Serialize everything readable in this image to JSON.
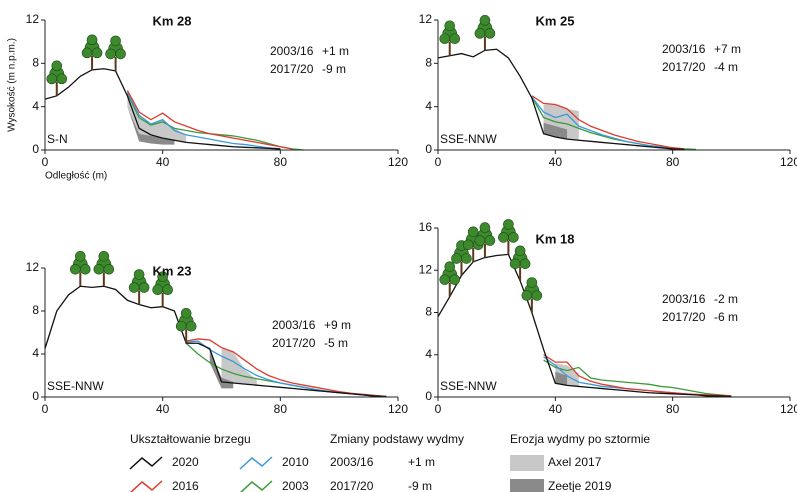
{
  "chart_data": [
    {
      "type": "line",
      "title": "Km 28",
      "y_label": "Wysokość (m n.p.m.)",
      "x_label": "Odległość (m)",
      "direction": "S-N",
      "annotations": [
        {
          "period": "2003/16",
          "change": "+1 m"
        },
        {
          "period": "2017/20",
          "change": "-9 m"
        }
      ],
      "xlim": [
        0,
        120
      ],
      "ylim": [
        0,
        12
      ],
      "xticks": [
        0,
        40,
        80,
        120
      ],
      "yticks": [
        0,
        4,
        8,
        12
      ],
      "x": [
        0,
        4,
        8,
        12,
        16,
        20,
        24,
        28,
        32,
        36,
        40,
        44,
        48,
        52,
        56,
        60,
        64,
        68,
        72,
        76,
        80,
        84,
        88,
        92,
        96,
        100,
        104,
        108,
        112,
        116
      ],
      "series": [
        {
          "name": "2020",
          "color": "#111111",
          "values": [
            4.7,
            5,
            5.8,
            6.8,
            7.4,
            7.5,
            7.3,
            5,
            2,
            1.4,
            1.1,
            0.9,
            0.7,
            0.6,
            0.5,
            0.4,
            0.3,
            0.25,
            0.2,
            0.15,
            0.1,
            null,
            null,
            null,
            null,
            null,
            null,
            null,
            null,
            null
          ]
        },
        {
          "name": "2016",
          "color": "#e03a2f",
          "values": [
            null,
            null,
            null,
            null,
            null,
            null,
            null,
            5.5,
            3.5,
            2.8,
            3.4,
            2.6,
            2.2,
            1.8,
            1.5,
            1.3,
            1.1,
            0.9,
            0.7,
            0.5,
            0.3,
            0.1,
            null,
            null,
            null,
            null,
            null,
            null,
            null,
            null
          ]
        },
        {
          "name": "2010",
          "color": "#3a9ad9",
          "values": [
            null,
            null,
            null,
            null,
            null,
            null,
            null,
            5.3,
            3.2,
            2.4,
            2.8,
            1.8,
            1.4,
            1.2,
            1.0,
            0.8,
            0.6,
            0.5,
            0.35,
            0.2,
            0.1,
            null,
            null,
            null,
            null,
            null,
            null,
            null,
            null,
            null
          ]
        },
        {
          "name": "2003",
          "color": "#3a9a3a",
          "values": [
            null,
            null,
            null,
            null,
            null,
            null,
            null,
            5.2,
            3.0,
            2.3,
            2.6,
            2.0,
            1.8,
            1.6,
            1.5,
            1.4,
            1.3,
            1.1,
            0.9,
            0.6,
            0.3,
            0.1,
            0,
            null,
            null,
            null,
            null,
            null,
            null,
            null
          ]
        }
      ],
      "areas": [
        {
          "name": "Axel 2017",
          "color": "#c8c8c8",
          "x": [
            28,
            32,
            36,
            40,
            44,
            48
          ],
          "upper": [
            5,
            3,
            2.4,
            2.8,
            2,
            1.4
          ],
          "lower": [
            4,
            1.5,
            1.3,
            1.1,
            0.9,
            0.7
          ]
        },
        {
          "name": "Zeetje 2019",
          "color": "#8a8a8a",
          "x": [
            28,
            32,
            36,
            40,
            44
          ],
          "upper": [
            4,
            1.5,
            1.3,
            1.1,
            0.9
          ],
          "lower": [
            4,
            0.8,
            0.6,
            0.5,
            0.5
          ]
        }
      ]
    },
    {
      "type": "line",
      "title": "Km 25",
      "direction": "SSE-NNW",
      "annotations": [
        {
          "period": "2003/16",
          "change": "+7 m"
        },
        {
          "period": "2017/20",
          "change": "-4 m"
        }
      ],
      "xlim": [
        0,
        120
      ],
      "ylim": [
        0,
        12
      ],
      "xticks": [
        0,
        40,
        80,
        120
      ],
      "yticks": [
        0,
        4,
        8,
        12
      ],
      "x": [
        0,
        4,
        8,
        12,
        16,
        20,
        24,
        28,
        32,
        36,
        40,
        44,
        48,
        52,
        56,
        60,
        64,
        68,
        72,
        76,
        80,
        84,
        88,
        92,
        96,
        100,
        104,
        108,
        112,
        116
      ],
      "series": [
        {
          "name": "2020",
          "color": "#111111",
          "values": [
            8.5,
            8.7,
            8.9,
            8.6,
            9.2,
            9.3,
            8.5,
            6.8,
            4.8,
            1.5,
            1.2,
            1.0,
            0.9,
            0.8,
            0.7,
            0.6,
            0.5,
            0.4,
            0.3,
            0.2,
            0.1,
            0.05,
            null,
            null,
            null,
            null,
            null,
            null,
            null,
            null
          ]
        },
        {
          "name": "2016",
          "color": "#e03a2f",
          "values": [
            null,
            null,
            null,
            null,
            null,
            null,
            null,
            null,
            5,
            4.3,
            4.2,
            3.8,
            2.8,
            2.2,
            1.8,
            1.4,
            1.1,
            0.8,
            0.6,
            0.4,
            0.2,
            0.1,
            null,
            null,
            null,
            null,
            null,
            null,
            null,
            null
          ]
        },
        {
          "name": "2010",
          "color": "#3a9ad9",
          "values": [
            null,
            null,
            null,
            null,
            null,
            null,
            null,
            null,
            4.9,
            3.5,
            3,
            3.3,
            2.2,
            1.8,
            1.4,
            1.1,
            0.8,
            0.6,
            0.4,
            0.3,
            0.15,
            0.05,
            null,
            null,
            null,
            null,
            null,
            null,
            null,
            null
          ]
        },
        {
          "name": "2003",
          "color": "#3a9a3a",
          "values": [
            null,
            null,
            null,
            null,
            null,
            null,
            null,
            null,
            4.9,
            3.0,
            2.6,
            2.4,
            2.0,
            1.6,
            1.3,
            1.0,
            0.8,
            0.6,
            0.4,
            0.3,
            0.2,
            0.1,
            0.05,
            null,
            null,
            null,
            null,
            null,
            null,
            null
          ]
        }
      ],
      "areas": [
        {
          "name": "Axel 2017",
          "color": "#c8c8c8",
          "x": [
            36,
            40,
            44,
            48
          ],
          "upper": [
            4.2,
            4.2,
            3.8,
            3.6
          ],
          "lower": [
            2,
            1.2,
            1.0,
            0.9
          ]
        },
        {
          "name": "Zeetje 2019",
          "color": "#8a8a8a",
          "x": [
            36,
            40,
            44
          ],
          "upper": [
            2.5,
            2.2,
            1.9
          ],
          "lower": [
            1.5,
            1.2,
            1.0
          ]
        }
      ]
    },
    {
      "type": "line",
      "title": "Km 23",
      "direction": "SSE-NNW",
      "annotations": [
        {
          "period": "2003/16",
          "change": "+9 m"
        },
        {
          "period": "2017/20",
          "change": "-5 m"
        }
      ],
      "xlim": [
        0,
        120
      ],
      "ylim": [
        0,
        12
      ],
      "xticks": [
        0,
        40,
        80,
        120
      ],
      "yticks": [
        0,
        4,
        8,
        12
      ],
      "x": [
        0,
        4,
        8,
        12,
        16,
        20,
        24,
        28,
        32,
        36,
        40,
        44,
        48,
        52,
        56,
        60,
        64,
        68,
        72,
        76,
        80,
        84,
        88,
        92,
        96,
        100,
        104,
        108,
        112,
        116
      ],
      "series": [
        {
          "name": "2020",
          "color": "#111111",
          "values": [
            4.5,
            8,
            9.5,
            10.3,
            10.2,
            10.3,
            10.0,
            9,
            8.6,
            8.3,
            8.4,
            8.0,
            5.0,
            5.0,
            4.5,
            1.4,
            1.3,
            1.2,
            1.1,
            1.0,
            0.9,
            0.8,
            0.7,
            0.6,
            0.5,
            0.4,
            0.3,
            0.2,
            0.1,
            0.05
          ]
        },
        {
          "name": "2016",
          "color": "#e03a2f",
          "values": [
            null,
            null,
            null,
            null,
            null,
            null,
            null,
            null,
            null,
            null,
            null,
            null,
            5.2,
            5.4,
            5.3,
            4.6,
            4.2,
            3.4,
            2.6,
            2.0,
            1.6,
            1.3,
            1.1,
            0.9,
            0.7,
            0.5,
            0.35,
            0.25,
            0.15,
            0.05
          ]
        },
        {
          "name": "2010",
          "color": "#3a9ad9",
          "values": [
            null,
            null,
            null,
            null,
            null,
            null,
            null,
            null,
            null,
            null,
            null,
            null,
            5.1,
            5.2,
            4.4,
            3.8,
            3.3,
            2.6,
            2.0,
            1.6,
            1.3,
            1.1,
            0.9,
            0.7,
            0.55,
            0.4,
            0.3,
            0.2,
            0.1,
            0.05
          ]
        },
        {
          "name": "2003",
          "color": "#3a9a3a",
          "values": [
            null,
            null,
            null,
            null,
            null,
            null,
            null,
            null,
            null,
            null,
            null,
            null,
            5.0,
            4.0,
            3.2,
            2.6,
            2.2,
            1.9,
            1.7,
            1.5,
            1.3,
            1.1,
            0.9,
            0.7,
            0.5,
            0.4,
            0.3,
            0.2,
            0.1,
            0.05
          ]
        }
      ],
      "areas": [
        {
          "name": "Axel 2017",
          "color": "#c8c8c8",
          "x": [
            60,
            64,
            68,
            72
          ],
          "upper": [
            4.6,
            4.2,
            2.5,
            1.6
          ],
          "lower": [
            1.4,
            1.3,
            1.2,
            1.1
          ]
        },
        {
          "name": "Zeetje 2019",
          "color": "#8a8a8a",
          "x": [
            56,
            60,
            64
          ],
          "upper": [
            4.4,
            1.8,
            1.4
          ],
          "lower": [
            3.2,
            0.8,
            0.8
          ]
        }
      ]
    },
    {
      "type": "line",
      "title": "Km 18",
      "direction": "SSE-NNW",
      "annotations": [
        {
          "period": "2003/16",
          "change": "-2 m"
        },
        {
          "period": "2017/20",
          "change": "-6 m"
        }
      ],
      "xlim": [
        0,
        120
      ],
      "ylim": [
        0,
        16
      ],
      "xticks": [
        0,
        40,
        80,
        120
      ],
      "yticks": [
        0,
        4,
        8,
        12,
        16
      ],
      "x": [
        0,
        4,
        8,
        12,
        16,
        20,
        24,
        28,
        32,
        36,
        40,
        44,
        48,
        52,
        56,
        60,
        64,
        68,
        72,
        76,
        80,
        84,
        88,
        92,
        96,
        100,
        104,
        108,
        112,
        116
      ],
      "series": [
        {
          "name": "2020",
          "color": "#111111",
          "values": [
            7.6,
            9.5,
            11.5,
            12.8,
            13.2,
            13.4,
            13.5,
            11,
            8,
            4.5,
            1.3,
            1.1,
            1.0,
            0.9,
            0.8,
            0.7,
            0.6,
            0.5,
            0.4,
            0.35,
            0.3,
            0.25,
            0.2,
            0.1,
            0.1,
            0.05,
            null,
            null,
            null,
            null
          ]
        },
        {
          "name": "2016",
          "color": "#e03a2f",
          "values": [
            null,
            null,
            null,
            null,
            null,
            null,
            null,
            null,
            null,
            4.0,
            3.3,
            3.3,
            2.0,
            1.5,
            1.2,
            1.0,
            0.8,
            0.7,
            0.6,
            0.5,
            0.4,
            0.3,
            0.25,
            0.2,
            0.15,
            0.1,
            null,
            null,
            null,
            null
          ]
        },
        {
          "name": "2010",
          "color": "#3a9ad9",
          "values": [
            null,
            null,
            null,
            null,
            null,
            null,
            null,
            null,
            null,
            3.8,
            3.0,
            2.0,
            1.4,
            1.2,
            1.0,
            0.9,
            0.8,
            0.7,
            0.6,
            0.5,
            0.4,
            0.3,
            0.2,
            0.2,
            0.1,
            0.05,
            null,
            null,
            null,
            null
          ]
        },
        {
          "name": "2003",
          "color": "#3a9a3a",
          "values": [
            null,
            null,
            null,
            null,
            null,
            null,
            null,
            null,
            null,
            3.5,
            2.8,
            2.5,
            2.8,
            1.8,
            1.6,
            1.5,
            1.4,
            1.3,
            1.2,
            1.0,
            0.9,
            0.7,
            0.5,
            0.3,
            0.2,
            0.1,
            null,
            null,
            null,
            null
          ]
        }
      ],
      "areas": [
        {
          "name": "Axel 2017",
          "color": "#c8c8c8",
          "x": [
            40,
            44,
            48
          ],
          "upper": [
            3.2,
            3.0,
            2.2
          ],
          "lower": [
            1.3,
            1.1,
            1.0
          ]
        },
        {
          "name": "Zeetje 2019",
          "color": "#8a8a8a",
          "x": [
            40,
            44
          ],
          "upper": [
            2.4,
            2.0
          ],
          "lower": [
            1.3,
            1.1
          ]
        }
      ]
    }
  ],
  "legend": {
    "shape_title": "Ukształtowanie brzegu",
    "base_title": "Zmiany podstawy wydmy",
    "erosion_title": "Erozja wydmy po sztormie",
    "base_change": [
      {
        "period": "2003/16",
        "change": "+1 m"
      },
      {
        "period": "2017/20",
        "change": "-9 m"
      }
    ]
  }
}
